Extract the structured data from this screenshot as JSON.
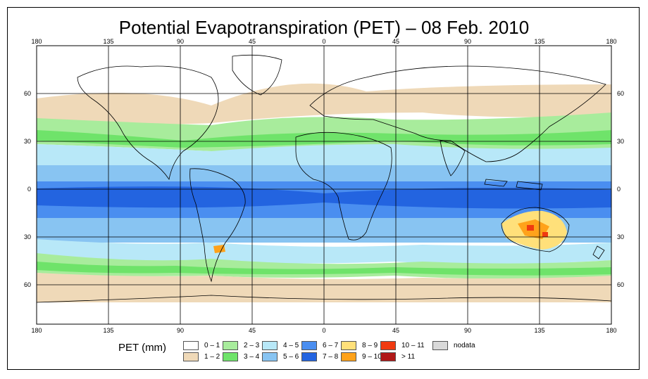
{
  "title": "Potential Evapotranspiration (PET) – 08 Feb. 2010",
  "axes": {
    "lon_ticks": [
      "180",
      "135",
      "90",
      "45",
      "0",
      "45",
      "90",
      "135",
      "180"
    ],
    "lat_ticks_left": [
      "60",
      "30",
      "0",
      "30",
      "60"
    ],
    "lat_ticks_right": [
      "60",
      "30",
      "0",
      "30",
      "60"
    ]
  },
  "legend": {
    "label": "PET (mm)",
    "items": [
      {
        "label": "0 – 1",
        "color": "#ffffff"
      },
      {
        "label": "1 – 2",
        "color": "#efd9b8"
      },
      {
        "label": "2 – 3",
        "color": "#a8ec9c"
      },
      {
        "label": "3 – 4",
        "color": "#6fe36a"
      },
      {
        "label": "4 – 5",
        "color": "#b8e8f8"
      },
      {
        "label": "5 – 6",
        "color": "#88c4f2"
      },
      {
        "label": "6 – 7",
        "color": "#4a8ef0"
      },
      {
        "label": "7 – 8",
        "color": "#2364e0"
      },
      {
        "label": "8 – 9",
        "color": "#ffe07a"
      },
      {
        "label": "9 – 10",
        "color": "#ffa21a"
      },
      {
        "label": "10 – 11",
        "color": "#f03a10"
      },
      {
        "label": "> 11",
        "color": "#b01818"
      },
      {
        "label": "nodata",
        "color": "#d9d9d9"
      }
    ]
  }
}
